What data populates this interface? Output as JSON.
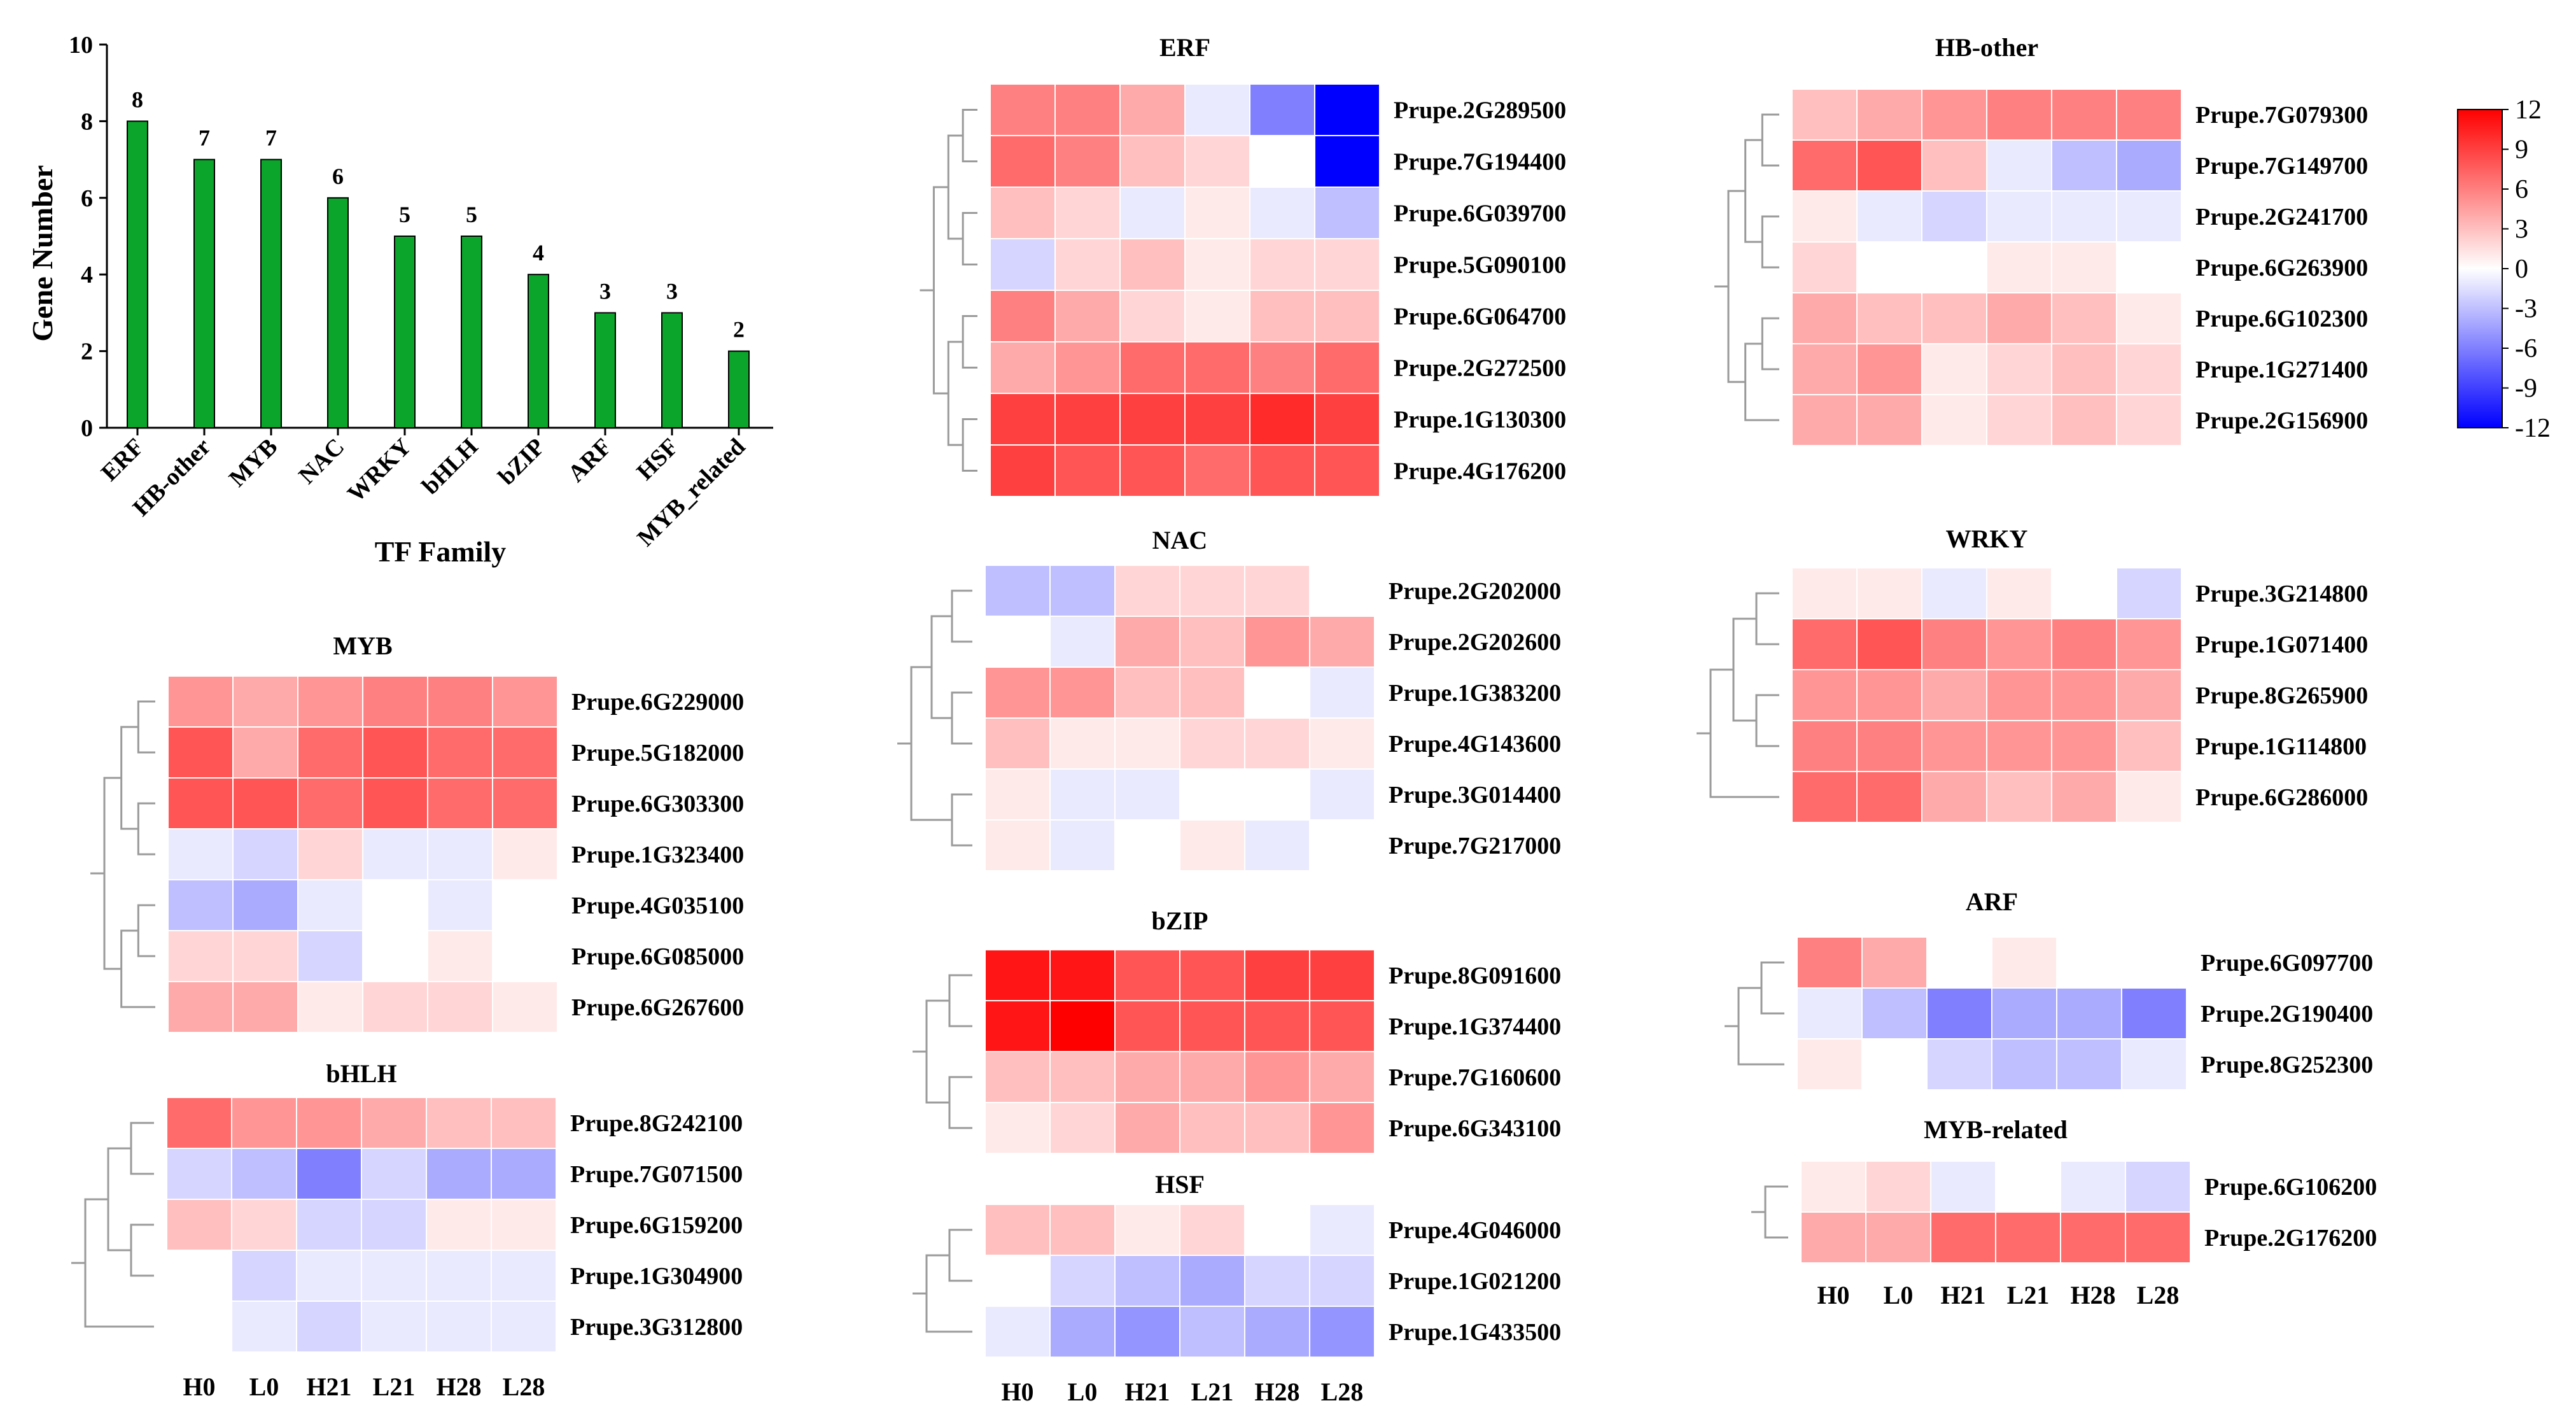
{
  "chart_data": [
    {
      "type": "bar",
      "title": "",
      "xlabel": "TF Family",
      "ylabel": "Gene Number",
      "ylim": [
        0,
        10
      ],
      "yticks": [
        "0",
        "2",
        "4",
        "6",
        "8",
        "10"
      ],
      "categories": [
        "ERF",
        "HB-other",
        "MYB",
        "NAC",
        "WRKY",
        "bHLH",
        "bZIP",
        "ARF",
        "HSF",
        "MYB_related"
      ],
      "values": [
        8,
        7,
        7,
        6,
        5,
        5,
        4,
        3,
        3,
        2
      ],
      "data_labels": [
        "8",
        "7",
        "7",
        "6",
        "5",
        "5",
        "4",
        "3",
        "3",
        "2"
      ],
      "color": "#0aa52a"
    },
    {
      "type": "heatmap",
      "title": "ERF",
      "columns": [
        "H0",
        "L0",
        "H21",
        "L21",
        "H28",
        "L28"
      ],
      "rows": [
        {
          "gene": "Prupe.2G289500",
          "values": [
            6,
            6,
            4,
            -1,
            -6,
            -12
          ]
        },
        {
          "gene": "Prupe.7G194400",
          "values": [
            7,
            6,
            3,
            2,
            0,
            -12
          ]
        },
        {
          "gene": "Prupe.6G039700",
          "values": [
            3,
            2,
            -1,
            1,
            -1,
            -3
          ]
        },
        {
          "gene": "Prupe.5G090100",
          "values": [
            -2,
            2,
            3,
            1,
            2,
            2
          ]
        },
        {
          "gene": "Prupe.6G064700",
          "values": [
            6,
            4,
            2,
            1,
            3,
            3
          ]
        },
        {
          "gene": "Prupe.2G272500",
          "values": [
            4,
            5,
            7,
            7,
            6,
            7
          ]
        },
        {
          "gene": "Prupe.1G130300",
          "values": [
            9,
            9,
            9,
            9,
            10,
            9
          ]
        },
        {
          "gene": "Prupe.4G176200",
          "values": [
            9,
            8,
            8,
            7,
            8,
            8
          ]
        }
      ]
    },
    {
      "type": "heatmap",
      "title": "HB-other",
      "columns": [
        "H0",
        "L0",
        "H21",
        "L21",
        "H28",
        "L28"
      ],
      "rows": [
        {
          "gene": "Prupe.7G079300",
          "values": [
            3,
            4,
            5,
            6,
            6,
            6
          ]
        },
        {
          "gene": "Prupe.7G149700",
          "values": [
            7,
            8,
            3,
            -1,
            -3,
            -4
          ]
        },
        {
          "gene": "Prupe.2G241700",
          "values": [
            1,
            -1,
            -2,
            -1,
            -1,
            -1
          ]
        },
        {
          "gene": "Prupe.6G263900",
          "values": [
            2,
            0,
            0,
            1,
            1,
            0
          ]
        },
        {
          "gene": "Prupe.6G102300",
          "values": [
            4,
            3,
            3,
            4,
            3,
            1
          ]
        },
        {
          "gene": "Prupe.1G271400",
          "values": [
            4,
            5,
            1,
            2,
            3,
            2
          ]
        },
        {
          "gene": "Prupe.2G156900",
          "values": [
            4,
            4,
            1,
            2,
            3,
            2
          ]
        }
      ]
    },
    {
      "type": "heatmap",
      "title": "NAC",
      "columns": [
        "H0",
        "L0",
        "H21",
        "L21",
        "H28",
        "L28"
      ],
      "rows": [
        {
          "gene": "Prupe.2G202000",
          "values": [
            -3,
            -3,
            2,
            2,
            2,
            0
          ]
        },
        {
          "gene": "Prupe.2G202600",
          "values": [
            0,
            -1,
            4,
            3,
            5,
            4
          ]
        },
        {
          "gene": "Prupe.1G383200",
          "values": [
            5,
            5,
            3,
            3,
            0,
            -1
          ]
        },
        {
          "gene": "Prupe.4G143600",
          "values": [
            3,
            1,
            1,
            2,
            2,
            1
          ]
        },
        {
          "gene": "Prupe.3G014400",
          "values": [
            1,
            -1,
            -1,
            0,
            0,
            -1
          ]
        },
        {
          "gene": "Prupe.7G217000",
          "values": [
            1,
            -1,
            0,
            1,
            -1,
            0
          ]
        }
      ]
    },
    {
      "type": "heatmap",
      "title": "WRKY",
      "columns": [
        "H0",
        "L0",
        "H21",
        "L21",
        "H28",
        "L28"
      ],
      "rows": [
        {
          "gene": "Prupe.3G214800",
          "values": [
            1,
            1,
            -1,
            1,
            0,
            -2
          ]
        },
        {
          "gene": "Prupe.1G071400",
          "values": [
            7,
            8,
            6,
            5,
            6,
            5
          ]
        },
        {
          "gene": "Prupe.8G265900",
          "values": [
            5,
            5,
            4,
            5,
            5,
            4
          ]
        },
        {
          "gene": "Prupe.1G114800",
          "values": [
            6,
            6,
            5,
            5,
            5,
            3
          ]
        },
        {
          "gene": "Prupe.6G286000",
          "values": [
            7,
            7,
            4,
            3,
            4,
            1
          ]
        }
      ]
    },
    {
      "type": "heatmap",
      "title": "MYB",
      "columns": [
        "H0",
        "L0",
        "H21",
        "L21",
        "H28",
        "L28"
      ],
      "rows": [
        {
          "gene": "Prupe.6G229000",
          "values": [
            5,
            4,
            5,
            6,
            6,
            5
          ]
        },
        {
          "gene": "Prupe.5G182000",
          "values": [
            8,
            4,
            7,
            8,
            7,
            7
          ]
        },
        {
          "gene": "Prupe.6G303300",
          "values": [
            8,
            8,
            7,
            8,
            7,
            7
          ]
        },
        {
          "gene": "Prupe.1G323400",
          "values": [
            -1,
            -2,
            2,
            -1,
            -1,
            1
          ]
        },
        {
          "gene": "Prupe.4G035100",
          "values": [
            -3,
            -4,
            -1,
            0,
            -1,
            0
          ]
        },
        {
          "gene": "Prupe.6G085000",
          "values": [
            2,
            2,
            -2,
            0,
            1,
            0
          ]
        },
        {
          "gene": "Prupe.6G267600",
          "values": [
            4,
            4,
            1,
            2,
            2,
            1
          ]
        }
      ]
    },
    {
      "type": "heatmap",
      "title": "bZIP",
      "columns": [
        "H0",
        "L0",
        "H21",
        "L21",
        "H28",
        "L28"
      ],
      "rows": [
        {
          "gene": "Prupe.8G091600",
          "values": [
            11,
            11,
            8,
            8,
            9,
            9
          ]
        },
        {
          "gene": "Prupe.1G374400",
          "values": [
            11,
            12,
            8,
            8,
            8,
            8
          ]
        },
        {
          "gene": "Prupe.7G160600",
          "values": [
            3,
            3,
            4,
            4,
            5,
            4
          ]
        },
        {
          "gene": "Prupe.6G343100",
          "values": [
            1,
            2,
            4,
            3,
            3,
            5
          ]
        }
      ]
    },
    {
      "type": "heatmap",
      "title": "ARF",
      "columns": [
        "H0",
        "L0",
        "H21",
        "L21",
        "H28",
        "L28"
      ],
      "rows": [
        {
          "gene": "Prupe.6G097700",
          "values": [
            6,
            4,
            0,
            1,
            0,
            0
          ]
        },
        {
          "gene": "Prupe.2G190400",
          "values": [
            -1,
            -3,
            -6,
            -4,
            -4,
            -6
          ]
        },
        {
          "gene": "Prupe.8G252300",
          "values": [
            1,
            0,
            -2,
            -3,
            -3,
            -1
          ]
        }
      ]
    },
    {
      "type": "heatmap",
      "title": "bHLH",
      "columns": [
        "H0",
        "L0",
        "H21",
        "L21",
        "H28",
        "L28"
      ],
      "rows": [
        {
          "gene": "Prupe.8G242100",
          "values": [
            7,
            5,
            5,
            4,
            3,
            3
          ]
        },
        {
          "gene": "Prupe.7G071500",
          "values": [
            -2,
            -3,
            -6,
            -2,
            -4,
            -4
          ]
        },
        {
          "gene": "Prupe.6G159200",
          "values": [
            3,
            2,
            -2,
            -2,
            1,
            1
          ]
        },
        {
          "gene": "Prupe.1G304900",
          "values": [
            0,
            -2,
            -1,
            -1,
            -1,
            -1
          ]
        },
        {
          "gene": "Prupe.3G312800",
          "values": [
            0,
            -1,
            -2,
            -1,
            -1,
            -1
          ]
        }
      ]
    },
    {
      "type": "heatmap",
      "title": "HSF",
      "columns": [
        "H0",
        "L0",
        "H21",
        "L21",
        "H28",
        "L28"
      ],
      "rows": [
        {
          "gene": "Prupe.4G046000",
          "values": [
            3,
            3,
            1,
            2,
            0,
            -1
          ]
        },
        {
          "gene": "Prupe.1G021200",
          "values": [
            0,
            -2,
            -3,
            -4,
            -2,
            -2
          ]
        },
        {
          "gene": "Prupe.1G433500",
          "values": [
            -1,
            -4,
            -5,
            -3,
            -4,
            -5
          ]
        }
      ]
    },
    {
      "type": "heatmap",
      "title": "MYB-related",
      "columns": [
        "H0",
        "L0",
        "H21",
        "L21",
        "H28",
        "L28"
      ],
      "rows": [
        {
          "gene": "Prupe.6G106200",
          "values": [
            1,
            2,
            -1,
            0,
            -1,
            -2
          ]
        },
        {
          "gene": "Prupe.2G176200",
          "values": [
            4,
            4,
            7,
            7,
            7,
            7
          ]
        }
      ]
    }
  ],
  "color_scale": {
    "min": -12,
    "max": 12,
    "ticks": [
      "12",
      "9",
      "6",
      "3",
      "0",
      "-3",
      "-6",
      "-9",
      "-12"
    ],
    "high_color": "#ff0000",
    "mid_color": "#ffffff",
    "low_color": "#0000ff"
  }
}
